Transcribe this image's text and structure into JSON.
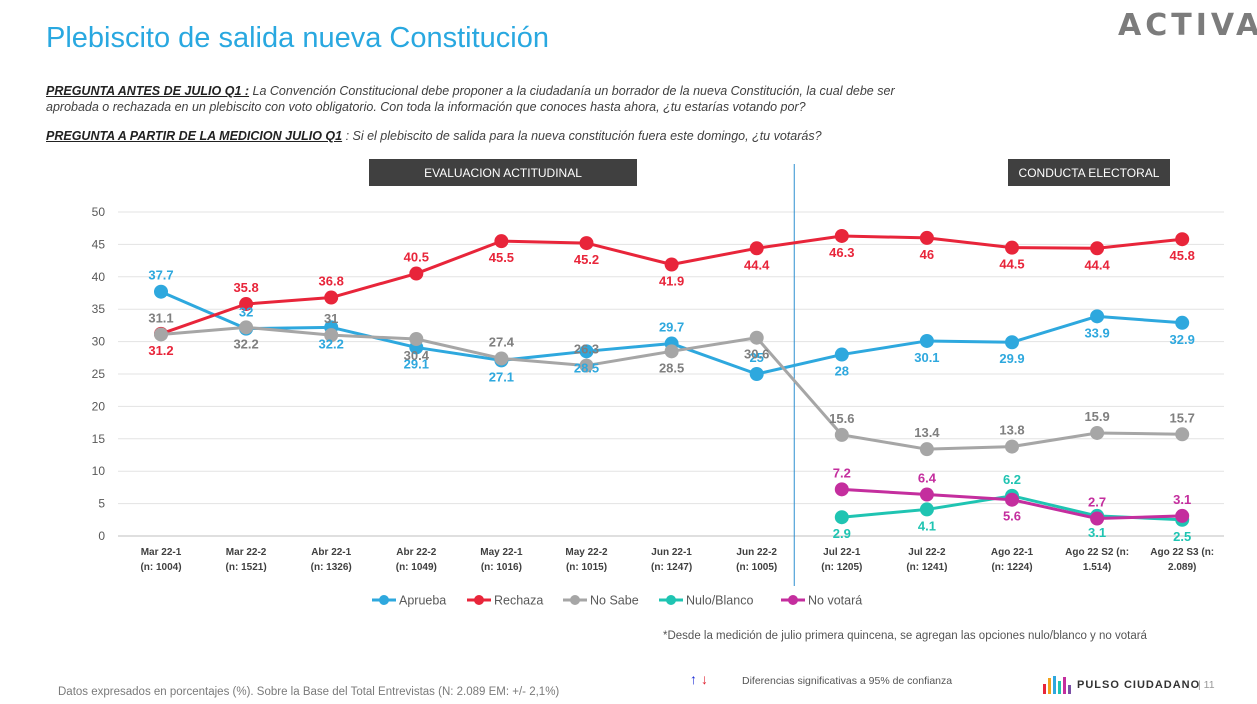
{
  "header": {
    "title": "Plebiscito de salida nueva Constitución",
    "brand": "ACTIVA"
  },
  "questions": {
    "q1_label": "PREGUNTA ANTES DE JULIO Q1 :",
    "q1_text": " La Convención Constitucional debe proponer a la ciudadanía un borrador de la nueva Constitución, la cual debe ser aprobada o rechazada en un plebiscito con voto obligatorio. Con toda la información que conoces hasta ahora, ¿tu estarías votando por?",
    "q2_label": "PREGUNTA A PARTIR DE LA MEDICION JULIO Q1",
    "q2_text": " : Si el plebiscito de salida para la nueva constitución fuera este domingo, ¿tu votarás?"
  },
  "panels": {
    "left": "EVALUACION ACTITUDINAL",
    "right": "CONDUCTA ELECTORAL"
  },
  "chart_data": {
    "type": "line",
    "ylim": [
      0,
      50
    ],
    "yticks": [
      0,
      5,
      10,
      15,
      20,
      25,
      30,
      35,
      40,
      45,
      50
    ],
    "grid": true,
    "legend_position": "bottom",
    "x": [
      [
        "Mar 22-1",
        "(n: 1004)"
      ],
      [
        "Mar 22-2",
        "(n: 1521)"
      ],
      [
        "Abr 22-1",
        "(n: 1326)"
      ],
      [
        "Abr 22-2",
        "(n: 1049)"
      ],
      [
        "May 22-1",
        "(n: 1016)"
      ],
      [
        "May 22-2",
        "(n: 1015)"
      ],
      [
        "Jun 22-1",
        "(n: 1247)"
      ],
      [
        "Jun 22-2",
        "(n: 1005)"
      ],
      [
        "Jul 22-1",
        "(n: 1205)"
      ],
      [
        "Jul 22-2",
        "(n: 1241)"
      ],
      [
        "Ago 22-1",
        "(n: 1224)"
      ],
      [
        "Ago 22  S2 (n:",
        "1.514)"
      ],
      [
        "Ago 22  S3 (n:",
        "2.089)"
      ]
    ],
    "divider_after_index": 7,
    "series": [
      {
        "name": "Aprueba",
        "color": "#2ea8de",
        "values": [
          37.7,
          32,
          32.2,
          29.1,
          27.1,
          28.5,
          29.7,
          25,
          28,
          30.1,
          29.9,
          33.9,
          32.9
        ],
        "labels": [
          "37.7",
          "32",
          "32.2",
          "29.1",
          "27.1",
          "28.5",
          "29.7",
          "25",
          "28",
          "30.1",
          "29.9",
          "33.9",
          "32.9"
        ],
        "label_pos": [
          "above",
          "above",
          "below",
          "below",
          "below",
          "below",
          "above",
          "above",
          "below",
          "below",
          "below",
          "below",
          "below"
        ]
      },
      {
        "name": "Rechaza",
        "color": "#e8253a",
        "values": [
          31.2,
          35.8,
          36.8,
          40.5,
          45.5,
          45.2,
          41.9,
          44.4,
          46.3,
          46,
          44.5,
          44.4,
          45.8
        ],
        "labels": [
          "31.2",
          "35.8",
          "36.8",
          "40.5",
          "45.5",
          "45.2",
          "41.9",
          "44.4",
          "46.3",
          "46",
          "44.5",
          "44.4",
          "45.8"
        ],
        "label_pos": [
          "below",
          "above",
          "above",
          "above",
          "below",
          "below",
          "below",
          "below",
          "below",
          "below",
          "below",
          "below",
          "below"
        ]
      },
      {
        "name": "No Sabe",
        "color": "#a6a6a6",
        "values": [
          31.1,
          32.2,
          31,
          30.4,
          27.4,
          26.3,
          28.5,
          30.6,
          15.6,
          13.4,
          13.8,
          15.9,
          15.7
        ],
        "labels": [
          "31.1",
          "32.2",
          "31",
          "30.4",
          "27.4",
          "26.3",
          "28.5",
          "30.6",
          "15.6",
          "13.4",
          "13.8",
          "15.9",
          "15.7"
        ],
        "label_pos": [
          "above",
          "below",
          "above",
          "below",
          "above",
          "above",
          "below",
          "below",
          "above",
          "above",
          "above",
          "above",
          "above"
        ]
      },
      {
        "name": "Nulo/Blanco",
        "color": "#1fc4b2",
        "values": [
          null,
          null,
          null,
          null,
          null,
          null,
          null,
          null,
          2.9,
          4.1,
          6.2,
          3.1,
          2.5
        ],
        "labels": [
          null,
          null,
          null,
          null,
          null,
          null,
          null,
          null,
          "2.9",
          "4.1",
          "6.2",
          "3.1",
          "2.5"
        ],
        "label_pos": [
          null,
          null,
          null,
          null,
          null,
          null,
          null,
          null,
          "below",
          "below",
          "above",
          "below",
          "below"
        ]
      },
      {
        "name": "No votará",
        "color": "#c42e9e",
        "values": [
          null,
          null,
          null,
          null,
          null,
          null,
          null,
          null,
          7.2,
          6.4,
          5.6,
          2.7,
          3.1
        ],
        "labels": [
          null,
          null,
          null,
          null,
          null,
          null,
          null,
          null,
          "7.2",
          "6.4",
          "5.6",
          "2.7",
          "3.1"
        ],
        "label_pos": [
          null,
          null,
          null,
          null,
          null,
          null,
          null,
          null,
          "above",
          "above",
          "below",
          "above",
          "above"
        ]
      }
    ]
  },
  "notes": {
    "asterisk": "*Desde la medición de julio primera quincena, se agregan las opciones nulo/blanco y no votará",
    "arrow_up": "↑",
    "arrow_down": "↓",
    "significance": "Diferencias  significativas a 95% de confianza",
    "footer": "Datos expresados en porcentajes (%). Sobre la Base del Total Entrevistas (N:  2.089   EM: +/- 2,1%)",
    "pulso_brand": "PULSO CIUDADANO",
    "page": "|   11"
  },
  "colors": {
    "title": "#29a8e0",
    "pulso_bars": [
      "#e8253a",
      "#f2a31b",
      "#2ea8de",
      "#1fc4b2",
      "#c42e9e",
      "#7b4fa6"
    ]
  }
}
